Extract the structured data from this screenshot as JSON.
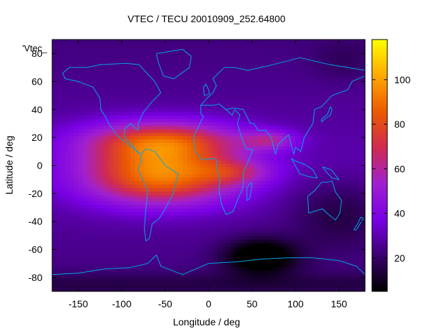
{
  "chart_data": {
    "type": "heatmap",
    "title": "VTEC / TECU 20010909_252.64800",
    "xlabel": "Longitude / deg",
    "ylabel": "Latitude / deg",
    "series_key": "'Vtec_",
    "xlim": [
      -180,
      180
    ],
    "ylim": [
      -90,
      90
    ],
    "x_ticks": [
      -150,
      -100,
      -50,
      0,
      50,
      100,
      150
    ],
    "y_ticks": [
      -80,
      -60,
      -40,
      -20,
      0,
      20,
      40,
      60,
      80
    ],
    "colorbar": {
      "range": [
        5,
        118
      ],
      "ticks": [
        20,
        40,
        60,
        80,
        100
      ],
      "colormap": [
        "#000000",
        "#3a0070",
        "#7a00e6",
        "#a020d0",
        "#d02a50",
        "#ec5a00",
        "#ffa800",
        "#ffff00"
      ]
    },
    "palette": {
      "coastline": "#00a6e8",
      "frame": "#000000"
    },
    "anomaly_core": {
      "lon": -95,
      "lat": 0,
      "vtec": 95
    },
    "trough_minimum": {
      "lon": 60,
      "lat": -65,
      "vtec": 5
    }
  }
}
